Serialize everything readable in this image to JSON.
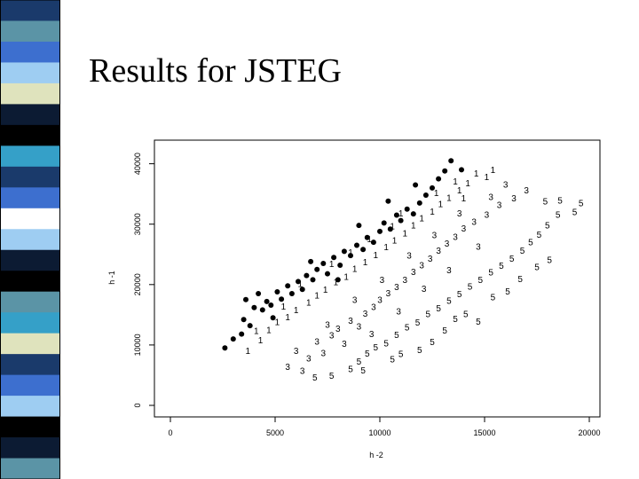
{
  "slide": {
    "title": "Results for JSTEG"
  },
  "colors": {
    "stripe_palette": [
      "#1a3a6b",
      "#5b94a6",
      "#3d6fcf",
      "#9ecdf2",
      "#dfe3bd",
      "#0c1b33",
      "#000000",
      "#35a0c8",
      "#ffffff"
    ],
    "points": "#000000"
  },
  "chart_data": {
    "type": "scatter",
    "title": "",
    "xlabel": "h -2",
    "ylabel": "h -1",
    "xlim": [
      0,
      20000
    ],
    "ylim": [
      0,
      42000
    ],
    "x_ticks": [
      0,
      5000,
      10000,
      15000,
      20000
    ],
    "y_ticks": [
      0,
      10000,
      20000,
      30000,
      40000
    ],
    "x_tick_labels": [
      "0",
      "5000",
      "10000",
      "15000",
      "20000"
    ],
    "y_tick_labels": [
      "0",
      "10000",
      "20000",
      "30000",
      "40000"
    ],
    "grid": false,
    "series": [
      {
        "marker": "filled-circle",
        "points": [
          [
            2600,
            9500
          ],
          [
            3000,
            11000
          ],
          [
            3400,
            11800
          ],
          [
            3500,
            14200
          ],
          [
            3600,
            17500
          ],
          [
            4000,
            16200
          ],
          [
            4200,
            18500
          ],
          [
            4400,
            15800
          ],
          [
            4600,
            17200
          ],
          [
            4800,
            16600
          ],
          [
            5100,
            18800
          ],
          [
            5300,
            17600
          ],
          [
            5600,
            19800
          ],
          [
            5800,
            18500
          ],
          [
            6100,
            20500
          ],
          [
            6300,
            19200
          ],
          [
            6500,
            21500
          ],
          [
            6800,
            20800
          ],
          [
            7000,
            22500
          ],
          [
            7300,
            23500
          ],
          [
            7500,
            21800
          ],
          [
            7800,
            24500
          ],
          [
            8100,
            23200
          ],
          [
            8300,
            25500
          ],
          [
            8600,
            24800
          ],
          [
            8900,
            26500
          ],
          [
            9200,
            25800
          ],
          [
            9400,
            27800
          ],
          [
            9700,
            27000
          ],
          [
            10000,
            28800
          ],
          [
            10200,
            30200
          ],
          [
            10500,
            29200
          ],
          [
            10800,
            31500
          ],
          [
            11000,
            30600
          ],
          [
            11300,
            32500
          ],
          [
            11600,
            31700
          ],
          [
            11900,
            33500
          ],
          [
            12200,
            34800
          ],
          [
            12500,
            36000
          ],
          [
            12800,
            37500
          ],
          [
            13100,
            38800
          ],
          [
            13400,
            40500
          ],
          [
            4900,
            14500
          ],
          [
            6700,
            23800
          ],
          [
            8000,
            20800
          ],
          [
            9000,
            29800
          ],
          [
            10400,
            33800
          ],
          [
            11700,
            36500
          ],
          [
            13900,
            39000
          ],
          [
            3800,
            13200
          ]
        ]
      },
      {
        "marker": "1",
        "points": [
          [
            3700,
            9000
          ],
          [
            4300,
            10800
          ],
          [
            4700,
            12500
          ],
          [
            5100,
            13800
          ],
          [
            5600,
            14600
          ],
          [
            6000,
            15800
          ],
          [
            6600,
            17000
          ],
          [
            7000,
            18200
          ],
          [
            7400,
            19200
          ],
          [
            7900,
            20400
          ],
          [
            8400,
            21300
          ],
          [
            8800,
            22600
          ],
          [
            9300,
            23700
          ],
          [
            9800,
            24900
          ],
          [
            10300,
            26200
          ],
          [
            10700,
            27300
          ],
          [
            11200,
            28500
          ],
          [
            11600,
            29800
          ],
          [
            12000,
            31000
          ],
          [
            12500,
            32100
          ],
          [
            12900,
            33300
          ],
          [
            13300,
            34400
          ],
          [
            13800,
            35600
          ],
          [
            14200,
            36800
          ],
          [
            14600,
            38400
          ],
          [
            15100,
            37800
          ],
          [
            15400,
            39000
          ],
          [
            6200,
            20100
          ],
          [
            7700,
            23400
          ],
          [
            9500,
            27500
          ],
          [
            11000,
            31800
          ],
          [
            12700,
            35200
          ],
          [
            5400,
            16400
          ],
          [
            8600,
            25300
          ],
          [
            10600,
            29700
          ],
          [
            13600,
            37100
          ],
          [
            4100,
            12300
          ],
          [
            14000,
            34300
          ]
        ]
      },
      {
        "marker": "3",
        "points": [
          [
            5600,
            6400
          ],
          [
            6300,
            5700
          ],
          [
            6600,
            7800
          ],
          [
            7000,
            10600
          ],
          [
            7300,
            8700
          ],
          [
            7700,
            11600
          ],
          [
            8000,
            12700
          ],
          [
            8300,
            10200
          ],
          [
            8600,
            14000
          ],
          [
            9000,
            13100
          ],
          [
            9300,
            15200
          ],
          [
            9700,
            16300
          ],
          [
            10000,
            17500
          ],
          [
            10400,
            18600
          ],
          [
            10800,
            19600
          ],
          [
            11200,
            20800
          ],
          [
            11600,
            22100
          ],
          [
            12000,
            23200
          ],
          [
            12400,
            24300
          ],
          [
            12800,
            25600
          ],
          [
            13200,
            26800
          ],
          [
            13600,
            27900
          ],
          [
            14000,
            29300
          ],
          [
            14500,
            30400
          ],
          [
            15100,
            31600
          ],
          [
            15700,
            33200
          ],
          [
            16400,
            34300
          ],
          [
            17000,
            35600
          ],
          [
            15300,
            34500
          ],
          [
            16000,
            36600
          ],
          [
            6000,
            9000
          ],
          [
            7500,
            13400
          ],
          [
            8800,
            17500
          ],
          [
            10100,
            20800
          ],
          [
            11400,
            24800
          ],
          [
            12600,
            28200
          ],
          [
            13800,
            31800
          ],
          [
            9600,
            11800
          ],
          [
            10900,
            15600
          ],
          [
            12100,
            19300
          ],
          [
            13300,
            22400
          ],
          [
            14700,
            26300
          ]
        ]
      },
      {
        "marker": "5",
        "points": [
          [
            6900,
            4600
          ],
          [
            7700,
            4900
          ],
          [
            8600,
            6000
          ],
          [
            9000,
            7300
          ],
          [
            9400,
            8600
          ],
          [
            9800,
            9600
          ],
          [
            10300,
            10300
          ],
          [
            10800,
            11700
          ],
          [
            11300,
            12900
          ],
          [
            11800,
            13700
          ],
          [
            12300,
            15100
          ],
          [
            12800,
            16100
          ],
          [
            13300,
            17300
          ],
          [
            13800,
            18400
          ],
          [
            14300,
            19700
          ],
          [
            14800,
            20800
          ],
          [
            15300,
            22000
          ],
          [
            15800,
            23100
          ],
          [
            16300,
            24300
          ],
          [
            16800,
            25600
          ],
          [
            17200,
            27000
          ],
          [
            17600,
            28300
          ],
          [
            18000,
            29800
          ],
          [
            18500,
            31600
          ],
          [
            19300,
            32000
          ],
          [
            19600,
            33500
          ],
          [
            17900,
            33800
          ],
          [
            18600,
            33900
          ],
          [
            10600,
            7600
          ],
          [
            11900,
            9200
          ],
          [
            13100,
            12400
          ],
          [
            14100,
            15100
          ],
          [
            15400,
            17900
          ],
          [
            16700,
            20900
          ],
          [
            18100,
            24100
          ],
          [
            9200,
            5800
          ],
          [
            12500,
            10500
          ],
          [
            14700,
            13900
          ],
          [
            16100,
            18900
          ],
          [
            17500,
            22900
          ],
          [
            11000,
            8500
          ],
          [
            13600,
            14300
          ]
        ]
      }
    ]
  }
}
